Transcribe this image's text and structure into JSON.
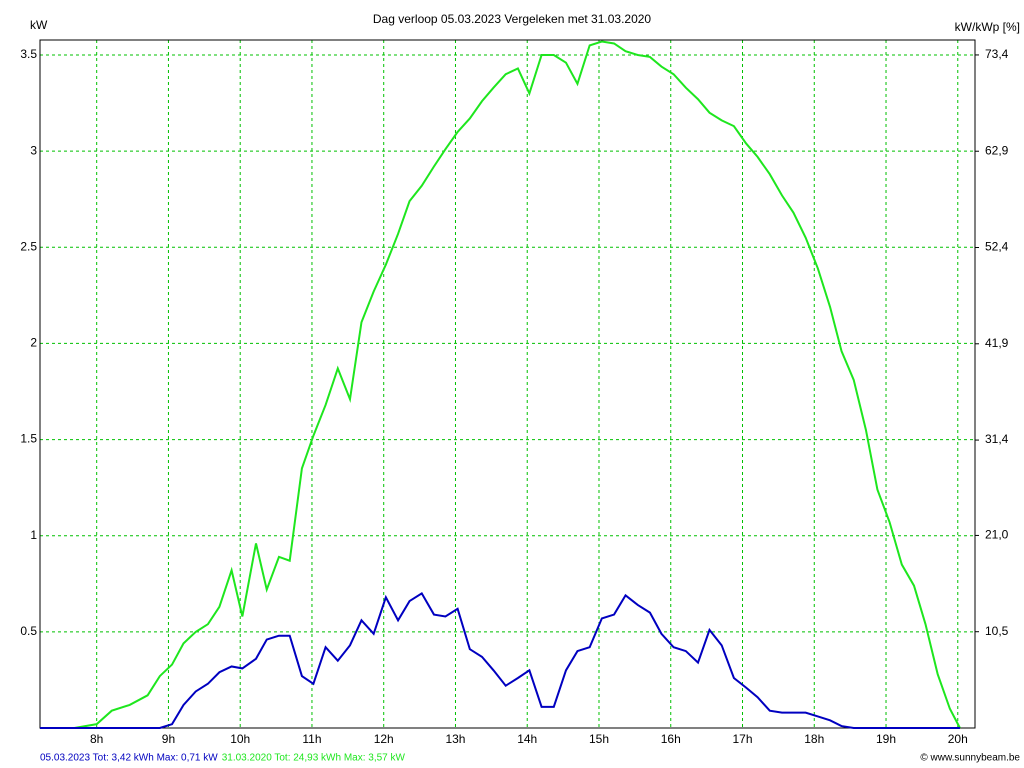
{
  "chart_data": {
    "type": "line",
    "title": "Dag  verloop 05.03.2023   Vergeleken met 31.03.2020",
    "y_label": "kW",
    "y2_label": "kW/kWp [%]",
    "copyright": "© www.sunnybeam.be",
    "x": [
      7.21,
      7.69,
      8.0,
      8.21,
      8.46,
      8.71,
      8.88,
      9.05,
      9.21,
      9.38,
      9.55,
      9.71,
      9.88,
      10.03,
      10.22,
      10.37,
      10.54,
      10.69,
      10.86,
      11.02,
      11.19,
      11.36,
      11.53,
      11.69,
      11.86,
      12.03,
      12.2,
      12.36,
      12.53,
      12.7,
      12.86,
      13.03,
      13.2,
      13.37,
      13.53,
      13.7,
      13.87,
      14.03,
      14.2,
      14.37,
      14.54,
      14.7,
      14.87,
      15.04,
      15.21,
      15.37,
      15.54,
      15.71,
      15.87,
      16.04,
      16.21,
      16.38,
      16.54,
      16.71,
      16.88,
      17.05,
      17.21,
      17.38,
      17.55,
      17.71,
      17.88,
      18.05,
      18.22,
      18.38,
      18.55,
      18.72,
      18.88,
      19.05,
      19.22,
      19.39,
      19.55,
      19.72,
      19.89,
      20.03
    ],
    "series": [
      {
        "name": "31.03.2020 Tot: 24,93 kWh Max: 3,57 kW",
        "color": "#1ee61e",
        "values": [
          0,
          0,
          0.02,
          0.09,
          0.12,
          0.17,
          0.27,
          0.33,
          0.44,
          0.5,
          0.54,
          0.63,
          0.82,
          0.58,
          0.96,
          0.72,
          0.89,
          0.87,
          1.35,
          1.52,
          1.68,
          1.87,
          1.71,
          2.11,
          2.27,
          2.41,
          2.57,
          2.74,
          2.82,
          2.92,
          3.01,
          3.1,
          3.17,
          3.26,
          3.33,
          3.4,
          3.43,
          3.3,
          3.5,
          3.5,
          3.46,
          3.35,
          3.55,
          3.57,
          3.56,
          3.52,
          3.5,
          3.49,
          3.44,
          3.4,
          3.33,
          3.27,
          3.2,
          3.16,
          3.13,
          3.04,
          2.97,
          2.88,
          2.77,
          2.68,
          2.55,
          2.39,
          2.19,
          1.96,
          1.81,
          1.55,
          1.24,
          1.07,
          0.85,
          0.74,
          0.54,
          0.28,
          0.1,
          0
        ]
      },
      {
        "name": "05.03.2023 Tot: 3,42 kWh Max: 0,71 kW",
        "color": "#0000c0",
        "values": [
          0,
          0,
          0,
          0,
          0,
          0,
          0,
          0.02,
          0.12,
          0.19,
          0.23,
          0.29,
          0.32,
          0.31,
          0.36,
          0.46,
          0.48,
          0.48,
          0.27,
          0.23,
          0.42,
          0.35,
          0.43,
          0.56,
          0.49,
          0.68,
          0.56,
          0.66,
          0.7,
          0.59,
          0.58,
          0.62,
          0.41,
          0.37,
          0.3,
          0.22,
          0.26,
          0.3,
          0.11,
          0.11,
          0.3,
          0.4,
          0.42,
          0.57,
          0.59,
          0.69,
          0.64,
          0.6,
          0.49,
          0.42,
          0.4,
          0.34,
          0.51,
          0.43,
          0.26,
          0.21,
          0.16,
          0.09,
          0.08,
          0.08,
          0.08,
          0.06,
          0.04,
          0.01,
          0,
          0,
          0,
          0,
          0,
          0,
          0,
          0,
          0,
          0
        ]
      }
    ],
    "xlim": [
      7.21,
      20.24
    ],
    "xticks": [
      {
        "value": 8,
        "label": "8h"
      },
      {
        "value": 9,
        "label": "9h"
      },
      {
        "value": 10,
        "label": "10h"
      },
      {
        "value": 11,
        "label": "11h"
      },
      {
        "value": 12,
        "label": "12h"
      },
      {
        "value": 13,
        "label": "13h"
      },
      {
        "value": 14,
        "label": "14h"
      },
      {
        "value": 15,
        "label": "15h"
      },
      {
        "value": 16,
        "label": "16h"
      },
      {
        "value": 17,
        "label": "17h"
      },
      {
        "value": 18,
        "label": "18h"
      },
      {
        "value": 19,
        "label": "19h"
      },
      {
        "value": 20,
        "label": "20h"
      }
    ],
    "ylim": [
      0,
      3.578
    ],
    "yticks": [
      0.5,
      1,
      1.5,
      2,
      2.5,
      3,
      3.5
    ],
    "y2lim": [
      0,
      75.03
    ],
    "y2ticks": [
      {
        "value": 10.5,
        "label": "10,5"
      },
      {
        "value": 21.0,
        "label": "21,0"
      },
      {
        "value": 31.4,
        "label": "31,4"
      },
      {
        "value": 41.9,
        "label": "41,9"
      },
      {
        "value": 52.4,
        "label": "52,4"
      },
      {
        "value": 62.9,
        "label": "62,9"
      },
      {
        "value": 73.4,
        "label": "73,4"
      }
    ],
    "grid": true,
    "grid_color": "#00c000"
  }
}
